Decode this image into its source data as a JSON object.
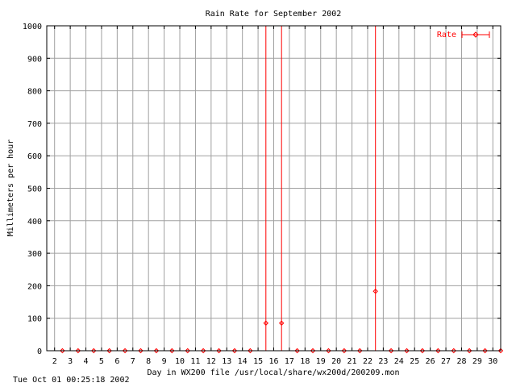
{
  "chart_data": {
    "type": "scatter",
    "title": "Rain Rate for September 2002",
    "xlabel": "Day in WX200 file /usr/local/share/wx200d/200209.mon",
    "ylabel": "Millimeters per hour",
    "xlim": [
      1.5,
      30.5
    ],
    "ylim": [
      0,
      1000
    ],
    "xticks": [
      2,
      3,
      4,
      5,
      6,
      7,
      8,
      9,
      10,
      11,
      12,
      13,
      14,
      15,
      16,
      17,
      18,
      19,
      20,
      21,
      22,
      23,
      24,
      25,
      26,
      27,
      28,
      29,
      30
    ],
    "yticks": [
      0,
      100,
      200,
      300,
      400,
      500,
      600,
      700,
      800,
      900,
      1000
    ],
    "grid": true,
    "legend_position": "top-right",
    "colors": {
      "series": "#ff0000",
      "axes": "#000000",
      "grid": "#a0a0a0"
    },
    "series": [
      {
        "name": "Rate",
        "style": "points with vertical error bars",
        "points": [
          {
            "x": 2.5,
            "y": 0,
            "ylow": 0,
            "yhigh": 0
          },
          {
            "x": 3.5,
            "y": 0,
            "ylow": 0,
            "yhigh": 0
          },
          {
            "x": 4.5,
            "y": 0,
            "ylow": 0,
            "yhigh": 0
          },
          {
            "x": 5.5,
            "y": 0,
            "ylow": 0,
            "yhigh": 0
          },
          {
            "x": 6.5,
            "y": 0,
            "ylow": 0,
            "yhigh": 0
          },
          {
            "x": 7.5,
            "y": 0,
            "ylow": 0,
            "yhigh": 0
          },
          {
            "x": 8.5,
            "y": 0,
            "ylow": 0,
            "yhigh": 0
          },
          {
            "x": 9.5,
            "y": 0,
            "ylow": 0,
            "yhigh": 0
          },
          {
            "x": 10.5,
            "y": 0,
            "ylow": 0,
            "yhigh": 0
          },
          {
            "x": 11.5,
            "y": 0,
            "ylow": 0,
            "yhigh": 0
          },
          {
            "x": 12.5,
            "y": 0,
            "ylow": 0,
            "yhigh": 0
          },
          {
            "x": 13.5,
            "y": 0,
            "ylow": 0,
            "yhigh": 0
          },
          {
            "x": 14.5,
            "y": 0,
            "ylow": 0,
            "yhigh": 0
          },
          {
            "x": 15.5,
            "y": 85,
            "ylow": 0,
            "yhigh": 1000
          },
          {
            "x": 16.5,
            "y": 85,
            "ylow": 0,
            "yhigh": 1000
          },
          {
            "x": 17.5,
            "y": 0,
            "ylow": 0,
            "yhigh": 0
          },
          {
            "x": 18.5,
            "y": 0,
            "ylow": 0,
            "yhigh": 0
          },
          {
            "x": 19.5,
            "y": 0,
            "ylow": 0,
            "yhigh": 0
          },
          {
            "x": 20.5,
            "y": 0,
            "ylow": 0,
            "yhigh": 0
          },
          {
            "x": 21.5,
            "y": 0,
            "ylow": 0,
            "yhigh": 0
          },
          {
            "x": 22.5,
            "y": 183,
            "ylow": 0,
            "yhigh": 1000
          },
          {
            "x": 23.5,
            "y": 0,
            "ylow": 0,
            "yhigh": 0
          },
          {
            "x": 24.5,
            "y": 0,
            "ylow": 0,
            "yhigh": 0
          },
          {
            "x": 25.5,
            "y": 0,
            "ylow": 0,
            "yhigh": 0
          },
          {
            "x": 26.5,
            "y": 0,
            "ylow": 0,
            "yhigh": 0
          },
          {
            "x": 27.5,
            "y": 0,
            "ylow": 0,
            "yhigh": 0
          },
          {
            "x": 28.5,
            "y": 0,
            "ylow": 0,
            "yhigh": 0
          },
          {
            "x": 29.5,
            "y": 0,
            "ylow": 0,
            "yhigh": 0
          },
          {
            "x": 30.5,
            "y": 0,
            "ylow": 0,
            "yhigh": 0
          }
        ]
      }
    ]
  },
  "footer": {
    "timestamp": "Tue Oct 01 00:25:18 2002"
  }
}
